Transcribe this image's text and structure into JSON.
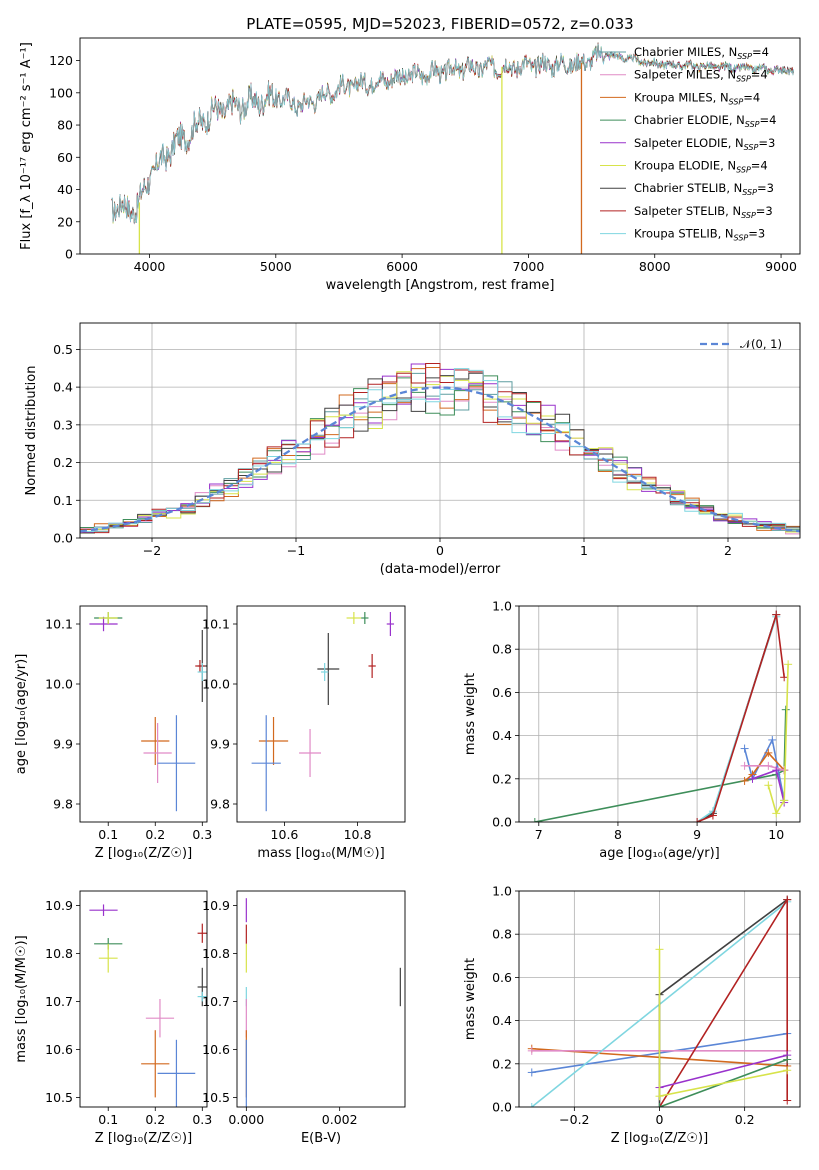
{
  "title": "PLATE=0595, MJD=52023, FIBERID=0572, z=0.033",
  "colors": {
    "chabrier_miles": "#5f9ea0",
    "salpeter_miles": "#ee82ee",
    "kroupa_miles": "#ff8c00",
    "chabrier_elodie": "#2e8b57",
    "salpeter_elodie": "#9400d3",
    "kroupa_elodie": "#d4e62b",
    "chabrier_stelib": "#404040",
    "salpeter_stelib": "#b22222",
    "kroupa_stelib": "#87ceeb",
    "gauss": "#5b86d6"
  },
  "chart_data": [
    {
      "id": "spectrum",
      "type": "line",
      "title": "PLATE=0595, MJD=52023, FIBERID=0572, z=0.033",
      "xlabel": "wavelength [Angstrom, rest frame]",
      "ylabel": "Flux [f_λ 10⁻¹⁷ erg cm⁻² s⁻¹ A⁻¹]",
      "xlim": [
        3450,
        9150
      ],
      "ylim": [
        0,
        134
      ],
      "xticks": [
        4000,
        5000,
        6000,
        7000,
        8000,
        9000
      ],
      "yticks": [
        0,
        20,
        40,
        60,
        80,
        100,
        120
      ],
      "grid": false,
      "legend_position": "top-right",
      "series": [
        {
          "name": "Chabrier MILES, N_SSP=4",
          "color": "#5f9ea0"
        },
        {
          "name": "Salpeter MILES, N_SSP=4",
          "color": "#e08bc6"
        },
        {
          "name": "Kroupa MILES, N_SSP=4",
          "color": "#d2691e"
        },
        {
          "name": "Chabrier ELODIE, N_SSP=4",
          "color": "#3e8e5a"
        },
        {
          "name": "Salpeter ELODIE, N_SSP=3",
          "color": "#9932cc"
        },
        {
          "name": "Kroupa ELODIE, N_SSP=4",
          "color": "#d7e34a"
        },
        {
          "name": "Chabrier STELIB, N_SSP=3",
          "color": "#404040"
        },
        {
          "name": "Salpeter STELIB, N_SSP=3",
          "color": "#b22222"
        },
        {
          "name": "Kroupa STELIB, N_SSP=3",
          "color": "#7fd6e0"
        }
      ],
      "continuum": [
        [
          3700,
          30
        ],
        [
          3900,
          28
        ],
        [
          4000,
          48
        ],
        [
          4200,
          68
        ],
        [
          4500,
          88
        ],
        [
          5000,
          98
        ],
        [
          5200,
          92
        ],
        [
          5500,
          103
        ],
        [
          6000,
          110
        ],
        [
          6500,
          115
        ],
        [
          7000,
          117
        ],
        [
          7400,
          118
        ],
        [
          7600,
          124
        ],
        [
          8000,
          118
        ],
        [
          8500,
          116
        ],
        [
          9000,
          114
        ]
      ],
      "drops": [
        [
          3920,
          "#d7e34a"
        ],
        [
          6790,
          "#d7e34a"
        ],
        [
          7420,
          "#d2691e"
        ]
      ]
    },
    {
      "id": "residuals",
      "type": "histogram",
      "xlabel": "(data-model)/error",
      "ylabel": "Normed distribution",
      "xlim": [
        -2.5,
        2.5
      ],
      "ylim": [
        0,
        0.57
      ],
      "xticks": [
        -2,
        -1,
        0,
        1,
        2
      ],
      "yticks": [
        0.0,
        0.1,
        0.2,
        0.3,
        0.4,
        0.5
      ],
      "grid": true,
      "legend_position": "top-right",
      "gauss_label": "𝒩(0, 1)",
      "bin_width": 0.1
    },
    {
      "id": "age_vs_Z",
      "type": "scatter",
      "xlabel": "Z [log₁₀(Z/Z☉)]",
      "ylabel": "age  [log₁₀(age/yr)]",
      "xlim": [
        0.04,
        0.31
      ],
      "ylim": [
        9.77,
        10.13
      ],
      "xticks": [
        0.1,
        0.2,
        0.3
      ],
      "yticks": [
        9.8,
        9.9,
        10.0,
        10.1
      ],
      "points": [
        {
          "x": 0.09,
          "y": 10.1,
          "xe": 0.03,
          "ye": 0.012,
          "c": "#9932cc"
        },
        {
          "x": 0.1,
          "y": 10.11,
          "xe": 0.03,
          "ye": 0.01,
          "c": "#3e8e5a"
        },
        {
          "x": 0.1,
          "y": 10.11,
          "xe": 0.02,
          "ye": 0.01,
          "c": "#d7e34a"
        },
        {
          "x": 0.3,
          "y": 10.03,
          "xe": 0.01,
          "ye": 0.06,
          "c": "#404040"
        },
        {
          "x": 0.295,
          "y": 10.03,
          "xe": 0.01,
          "ye": 0.01,
          "c": "#b22222"
        },
        {
          "x": 0.3,
          "y": 10.02,
          "xe": 0.01,
          "ye": 0.015,
          "c": "#7fd6e0"
        },
        {
          "x": 0.2,
          "y": 9.905,
          "xe": 0.03,
          "ye": 0.04,
          "c": "#d2691e"
        },
        {
          "x": 0.205,
          "y": 9.885,
          "xe": 0.03,
          "ye": 0.05,
          "c": "#e08bc6"
        },
        {
          "x": 0.245,
          "y": 9.868,
          "xe": 0.04,
          "ye": 0.08,
          "c": "#5b86d6"
        }
      ]
    },
    {
      "id": "age_vs_mass",
      "type": "scatter",
      "xlabel": "mass [log₁₀(M/M☉)]",
      "ylabel": "",
      "xlim": [
        10.47,
        10.93
      ],
      "ylim": [
        9.77,
        10.13
      ],
      "xticks": [
        10.6,
        10.8
      ],
      "yticks": [
        9.8,
        9.9,
        10.0,
        10.1
      ],
      "points": [
        {
          "x": 10.57,
          "y": 9.905,
          "xe": 0.04,
          "ye": 0.04,
          "c": "#d2691e"
        },
        {
          "x": 10.55,
          "y": 9.868,
          "xe": 0.04,
          "ye": 0.08,
          "c": "#5b86d6"
        },
        {
          "x": 10.67,
          "y": 9.885,
          "xe": 0.03,
          "ye": 0.04,
          "c": "#e08bc6"
        },
        {
          "x": 10.72,
          "y": 10.025,
          "xe": 0.03,
          "ye": 0.06,
          "c": "#404040"
        },
        {
          "x": 10.71,
          "y": 10.02,
          "xe": 0.01,
          "ye": 0.015,
          "c": "#7fd6e0"
        },
        {
          "x": 10.84,
          "y": 10.03,
          "xe": 0.01,
          "ye": 0.02,
          "c": "#b22222"
        },
        {
          "x": 10.79,
          "y": 10.11,
          "xe": 0.02,
          "ye": 0.01,
          "c": "#d7e34a"
        },
        {
          "x": 10.82,
          "y": 10.11,
          "xe": 0.01,
          "ye": 0.01,
          "c": "#3e8e5a"
        },
        {
          "x": 10.89,
          "y": 10.1,
          "xe": 0.01,
          "ye": 0.02,
          "c": "#9932cc"
        }
      ]
    },
    {
      "id": "weight_vs_age",
      "type": "line",
      "xlabel": "age  [log₁₀(age/yr)]",
      "ylabel": "mass weight",
      "xlim": [
        6.75,
        10.3
      ],
      "ylim": [
        0,
        1
      ],
      "xticks": [
        7,
        8,
        9,
        10
      ],
      "yticks": [
        0.0,
        0.2,
        0.4,
        0.6,
        0.8,
        1.0
      ],
      "lines": [
        {
          "c": "#3e8e5a",
          "pts": [
            [
              6.95,
              0.0
            ],
            [
              10.0,
              0.22
            ],
            [
              10.1,
              0.24
            ],
            [
              10.12,
              0.52
            ]
          ]
        },
        {
          "c": "#404040",
          "pts": [
            [
              9.0,
              0.0
            ],
            [
              9.2,
              0.04
            ],
            [
              10.0,
              0.96
            ]
          ]
        },
        {
          "c": "#7fd6e0",
          "pts": [
            [
              9.0,
              0.0
            ],
            [
              9.2,
              0.05
            ],
            [
              10.0,
              0.95
            ]
          ]
        },
        {
          "c": "#b22222",
          "pts": [
            [
              9.0,
              0.0
            ],
            [
              9.2,
              0.03
            ],
            [
              10.0,
              0.96
            ],
            [
              10.1,
              0.67
            ]
          ]
        },
        {
          "c": "#5b86d6",
          "pts": [
            [
              9.6,
              0.34
            ],
            [
              9.7,
              0.2
            ],
            [
              9.95,
              0.38
            ],
            [
              10.1,
              0.1
            ]
          ]
        },
        {
          "c": "#d2691e",
          "pts": [
            [
              9.6,
              0.19
            ],
            [
              9.7,
              0.22
            ],
            [
              9.9,
              0.32
            ],
            [
              10.1,
              0.24
            ]
          ]
        },
        {
          "c": "#e08bc6",
          "pts": [
            [
              9.6,
              0.26
            ],
            [
              9.9,
              0.26
            ],
            [
              10.1,
              0.24
            ]
          ]
        },
        {
          "c": "#9932cc",
          "pts": [
            [
              9.7,
              0.2
            ],
            [
              10.0,
              0.24
            ],
            [
              10.1,
              0.09
            ]
          ]
        },
        {
          "c": "#d7e34a",
          "pts": [
            [
              9.9,
              0.17
            ],
            [
              10.0,
              0.04
            ],
            [
              10.1,
              0.1
            ],
            [
              10.15,
              0.73
            ]
          ]
        }
      ]
    },
    {
      "id": "mass_vs_Z",
      "type": "scatter",
      "xlabel": "Z [log₁₀(Z/Z☉)]",
      "ylabel": "mass [log₁₀(M/M☉)]",
      "xlim": [
        0.04,
        0.31
      ],
      "ylim": [
        10.48,
        10.93
      ],
      "xticks": [
        0.1,
        0.2,
        0.3
      ],
      "yticks": [
        10.5,
        10.6,
        10.7,
        10.8,
        10.9
      ],
      "points": [
        {
          "x": 0.09,
          "y": 10.89,
          "xe": 0.03,
          "ye": 0.012,
          "c": "#9932cc"
        },
        {
          "x": 0.1,
          "y": 10.82,
          "xe": 0.03,
          "ye": 0.012,
          "c": "#3e8e5a"
        },
        {
          "x": 0.1,
          "y": 10.79,
          "xe": 0.02,
          "ye": 0.03,
          "c": "#d7e34a"
        },
        {
          "x": 0.3,
          "y": 10.842,
          "xe": 0.01,
          "ye": 0.02,
          "c": "#b22222"
        },
        {
          "x": 0.3,
          "y": 10.73,
          "xe": 0.01,
          "ye": 0.04,
          "c": "#404040"
        },
        {
          "x": 0.3,
          "y": 10.71,
          "xe": 0.01,
          "ye": 0.01,
          "c": "#7fd6e0"
        },
        {
          "x": 0.21,
          "y": 10.665,
          "xe": 0.03,
          "ye": 0.04,
          "c": "#e08bc6"
        },
        {
          "x": 0.2,
          "y": 10.57,
          "xe": 0.03,
          "ye": 0.07,
          "c": "#d2691e"
        },
        {
          "x": 0.245,
          "y": 10.55,
          "xe": 0.04,
          "ye": 0.07,
          "c": "#5b86d6"
        }
      ]
    },
    {
      "id": "mass_vs_ebv",
      "type": "scatter",
      "xlabel": "E(B-V)",
      "ylabel": "",
      "xlim": [
        -0.0002,
        0.0034
      ],
      "ylim": [
        10.48,
        10.93
      ],
      "xticks": [
        0.0,
        0.002
      ],
      "tick_labels": [
        "0.000",
        "0.002"
      ],
      "yticks": [
        10.5,
        10.6,
        10.7,
        10.8,
        10.9
      ],
      "points": [
        {
          "x": 0.0,
          "y": 10.89,
          "xe": 0,
          "ye": 0.025,
          "c": "#9932cc"
        },
        {
          "x": 0.0,
          "y": 10.84,
          "xe": 0,
          "ye": 0.02,
          "c": "#b22222"
        },
        {
          "x": 0.0,
          "y": 10.79,
          "xe": 0,
          "ye": 0.03,
          "c": "#d7e34a"
        },
        {
          "x": 0.0,
          "y": 10.71,
          "xe": 0,
          "ye": 0.02,
          "c": "#7fd6e0"
        },
        {
          "x": 0.0,
          "y": 10.665,
          "xe": 0,
          "ye": 0.04,
          "c": "#e08bc6"
        },
        {
          "x": 0.0,
          "y": 10.57,
          "xe": 0,
          "ye": 0.07,
          "c": "#d2691e"
        },
        {
          "x": 0.0,
          "y": 10.55,
          "xe": 0,
          "ye": 0.07,
          "c": "#5b86d6"
        },
        {
          "x": 0.0033,
          "y": 10.73,
          "xe": 0,
          "ye": 0.04,
          "c": "#404040"
        }
      ]
    },
    {
      "id": "weight_vs_Z",
      "type": "line",
      "xlabel": "Z [log₁₀(Z/Z☉)]",
      "ylabel": "mass weight",
      "xlim": [
        -0.33,
        0.33
      ],
      "ylim": [
        0,
        1
      ],
      "xticks": [
        -0.2,
        0.0,
        0.2
      ],
      "yticks": [
        0.0,
        0.2,
        0.4,
        0.6,
        0.8,
        1.0
      ],
      "lines": [
        {
          "c": "#5b86d6",
          "pts": [
            [
              -0.3,
              0.16
            ],
            [
              0.3,
              0.34
            ]
          ]
        },
        {
          "c": "#d2691e",
          "pts": [
            [
              -0.3,
              0.27
            ],
            [
              0.3,
              0.19
            ]
          ]
        },
        {
          "c": "#e08bc6",
          "pts": [
            [
              -0.3,
              0.26
            ],
            [
              0.3,
              0.26
            ]
          ]
        },
        {
          "c": "#7fd6e0",
          "pts": [
            [
              -0.3,
              0.0
            ],
            [
              0.3,
              0.95
            ]
          ]
        },
        {
          "c": "#404040",
          "pts": [
            [
              0.0,
              0.0
            ],
            [
              0.0,
              0.52
            ],
            [
              0.3,
              0.96
            ]
          ]
        },
        {
          "c": "#b22222",
          "pts": [
            [
              0.0,
              0.0
            ],
            [
              0.3,
              0.96
            ],
            [
              0.3,
              0.03
            ]
          ]
        },
        {
          "c": "#9932cc",
          "pts": [
            [
              0.0,
              0.09
            ],
            [
              0.3,
              0.24
            ]
          ]
        },
        {
          "c": "#3e8e5a",
          "pts": [
            [
              0.0,
              0.0
            ],
            [
              0.3,
              0.22
            ]
          ]
        },
        {
          "c": "#d7e34a",
          "pts": [
            [
              0.0,
              0.73
            ],
            [
              0.0,
              0.05
            ],
            [
              0.3,
              0.17
            ]
          ]
        }
      ]
    }
  ]
}
